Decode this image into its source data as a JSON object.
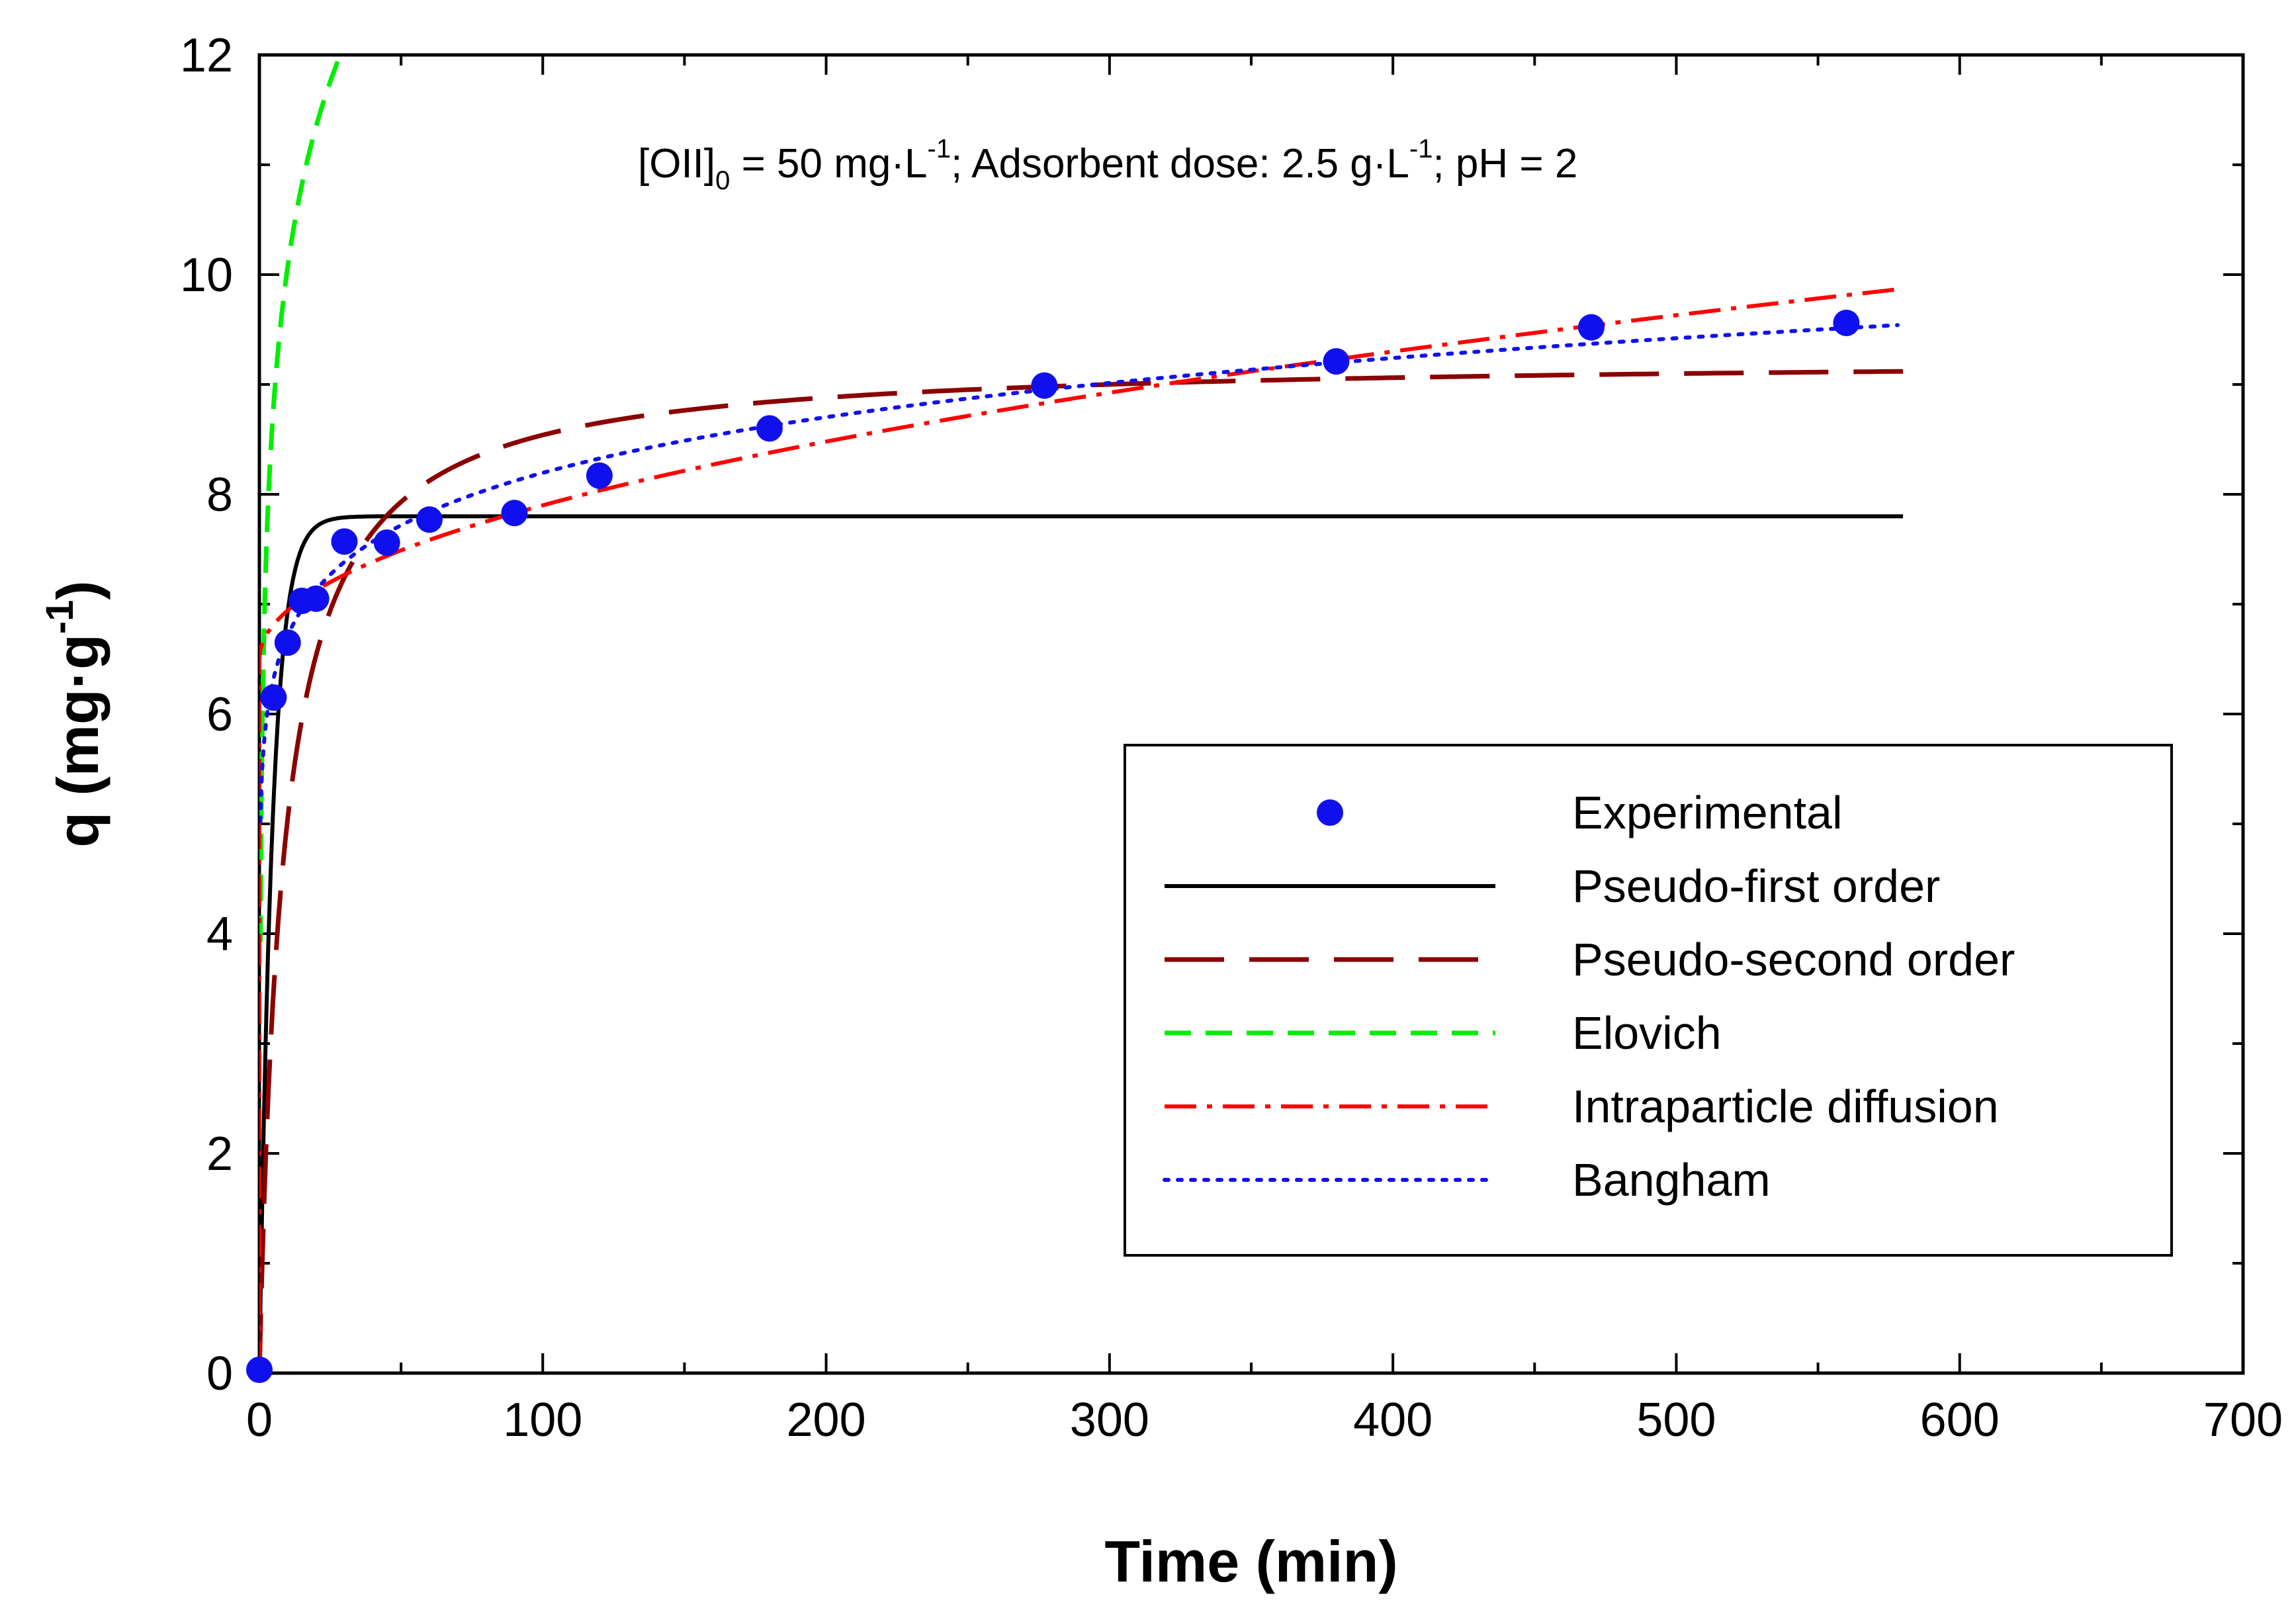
{
  "chart_data": {
    "type": "scatter",
    "xlabel": "Time (min)",
    "ylabel": {
      "base": "q (mg·g",
      "sup": "-1",
      "end": ")"
    },
    "xlim": [
      0,
      700
    ],
    "ylim": [
      0,
      12
    ],
    "xticks": [
      0,
      100,
      200,
      300,
      400,
      500,
      600,
      700
    ],
    "yticks": [
      0,
      2,
      4,
      6,
      8,
      10,
      12
    ],
    "annotation": {
      "p1": "[OII]",
      "sub0": "0",
      "p2": " = 50 mg·L",
      "sup1": "-1",
      "p3": "; Adsorbent dose: 2.5 g·L",
      "sup2": "-1",
      "p4": "; pH = 2"
    },
    "legend_position": "lower-right",
    "experimental": {
      "name": "Experimental",
      "color": "#1010ee",
      "x": [
        0,
        5,
        10,
        15,
        20,
        30,
        45,
        60,
        90,
        120,
        180,
        277,
        380,
        470,
        560
      ],
      "y": [
        0.03,
        6.15,
        6.65,
        7.03,
        7.05,
        7.57,
        7.56,
        7.77,
        7.83,
        8.17,
        8.6,
        8.99,
        9.21,
        9.52,
        9.56
      ]
    },
    "models": [
      {
        "name": "Pseudo-first order",
        "color": "#000000",
        "style": "solid",
        "func": "pfo",
        "params": {
          "qe": 7.8,
          "k": 0.22
        }
      },
      {
        "name": "Pseudo-second order",
        "color": "#8b0000",
        "style": "longdash",
        "func": "pso",
        "params": {
          "qe": 9.25,
          "k": 0.013
        }
      },
      {
        "name": "Elovich",
        "color": "#00ee00",
        "style": "dash",
        "func": "elovich",
        "params": {
          "a": 5.85,
          "b": 0.545
        }
      },
      {
        "name": "Intraparticle diffusion",
        "color": "#ff0000",
        "style": "dashdot",
        "func": "ipd",
        "params": {
          "c": 6.5,
          "k": 0.14
        }
      },
      {
        "name": "Bangham",
        "color": "#1010ee",
        "style": "dotted",
        "func": "bangham",
        "params": {
          "a": 5.5,
          "b": 0.0866
        }
      }
    ],
    "x_max_model": 580
  }
}
